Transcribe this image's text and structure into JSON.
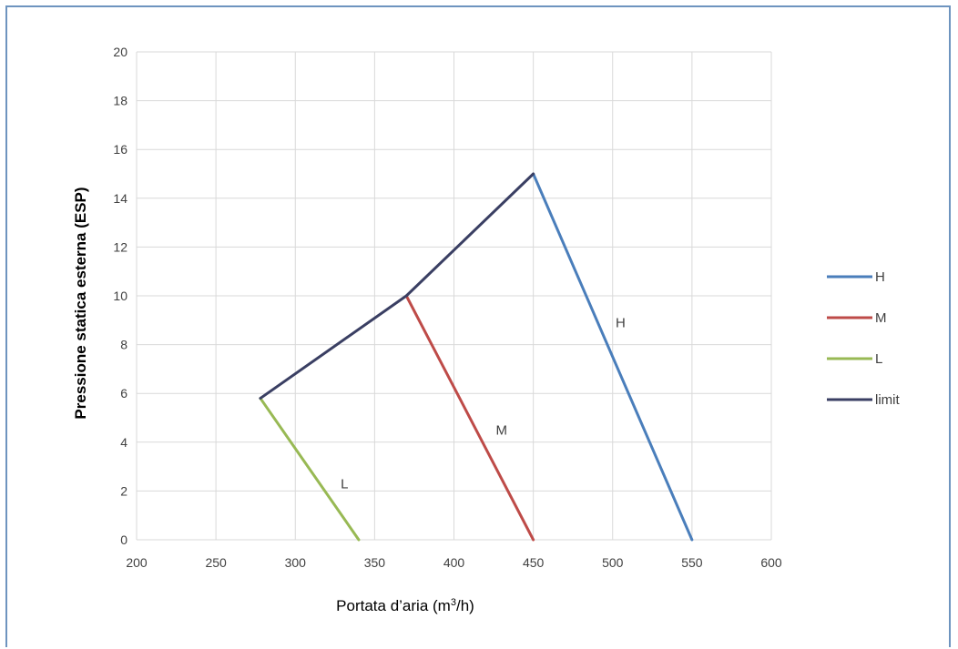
{
  "chart_data": {
    "type": "line",
    "xlabel": "Portata d'aria (m³/h)",
    "xlabel_main": "Portata d’aria (m",
    "xlabel_sup": "3",
    "xlabel_tail": "/h)",
    "ylabel": "Pressione statica esterna (ESP)",
    "xlim": [
      200,
      600
    ],
    "ylim": [
      0,
      20
    ],
    "x_ticks": [
      200,
      250,
      300,
      350,
      400,
      450,
      500,
      550,
      600
    ],
    "y_ticks": [
      0,
      2,
      4,
      6,
      8,
      10,
      12,
      14,
      16,
      18,
      20
    ],
    "grid": true,
    "legend_position": "right",
    "series": [
      {
        "name": "H",
        "color": "#4a7ebb",
        "points": [
          [
            450,
            15
          ],
          [
            550,
            0
          ]
        ]
      },
      {
        "name": "M",
        "color": "#be4b48",
        "points": [
          [
            370,
            10
          ],
          [
            450,
            0
          ]
        ]
      },
      {
        "name": "L",
        "color": "#98b954",
        "points": [
          [
            278,
            5.8
          ],
          [
            340,
            0
          ]
        ]
      },
      {
        "name": "limit",
        "color": "#3a3f63",
        "points": [
          [
            278,
            5.8
          ],
          [
            370,
            10
          ],
          [
            450,
            15
          ]
        ]
      }
    ],
    "annotations": [
      {
        "text": "H",
        "x": 505,
        "y": 8.9
      },
      {
        "text": "M",
        "x": 430,
        "y": 4.5
      },
      {
        "text": "L",
        "x": 331,
        "y": 2.3
      }
    ]
  }
}
